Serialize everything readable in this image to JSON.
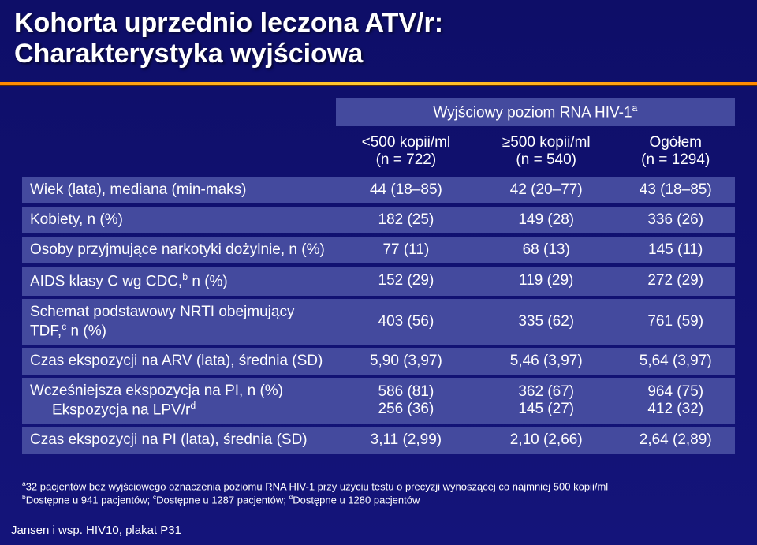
{
  "title_line1": "Kohorta uprzednio leczona ATV/r:",
  "title_line2": "Charakterystyka wyjściowa",
  "band_header": "Wyjściowy poziom RNA HIV-1",
  "band_header_sup": "a",
  "cols": {
    "c1_l1": "<500 kopii/ml",
    "c1_l2": "(n = 722)",
    "c2_l1": "≥500 kopii/ml",
    "c2_l2": "(n = 540)",
    "c3_l1": "Ogółem",
    "c3_l2": "(n = 1294)"
  },
  "rows": [
    {
      "label": "Wiek (lata), mediana (min-maks)",
      "v": [
        "44 (18–85)",
        "42 (20–77)",
        "43 (18–85)"
      ]
    },
    {
      "label": "Kobiety, n (%)",
      "v": [
        "182 (25)",
        "149 (28)",
        "336 (26)"
      ]
    },
    {
      "label": "Osoby przyjmujące narkotyki dożylnie, n (%)",
      "v": [
        "77 (11)",
        "68 (13)",
        "145 (11)"
      ]
    },
    {
      "label_html": "AIDS klasy C wg CDC,<sup>b</sup> n (%)",
      "v": [
        "152 (29)",
        "119 (29)",
        "272 (29)"
      ]
    },
    {
      "label_html": "Schemat podstawowy NRTI obejmujący TDF,<sup>c</sup> n (%)",
      "v": [
        "403 (56)",
        "335 (62)",
        "761 (59)"
      ]
    },
    {
      "label": "Czas ekspozycji na ARV (lata), średnia (SD)",
      "v": [
        "5,90 (3,97)",
        "5,46 (3,97)",
        "5,64 (3,97)"
      ]
    },
    {
      "label_html": "Wcześniejsza ekspozycja na PI, n (%)<br><span class=\"subline\">Ekspozycja na LPV/r<sup>d</sup></span>",
      "v": [
        "586 (81)<br>256 (36)",
        "362 (67)<br>145 (27)",
        "964 (75)<br>412 (32)"
      ]
    },
    {
      "label": "Czas ekspozycji na PI (lata), średnia (SD)",
      "v": [
        "3,11 (2,99)",
        "2,10 (2,66)",
        "2,64 (2,89)"
      ]
    }
  ],
  "footnote_a_sup": "a",
  "footnote_a": "32 pacjentów bez wyjściowego oznaczenia poziomu RNA HIV-1 przy użyciu testu o precyzji wynoszącej co najmniej 500 kopii/ml",
  "footnote_bcd_html": "<sup>b</sup>Dostępne u 941 pacjentów; <sup>c</sup>Dostępne u 1287 pacjentów; <sup>d</sup>Dostępne u 1280 pacjentów",
  "citation": "Jansen i wsp. HIV10, plakat P31"
}
